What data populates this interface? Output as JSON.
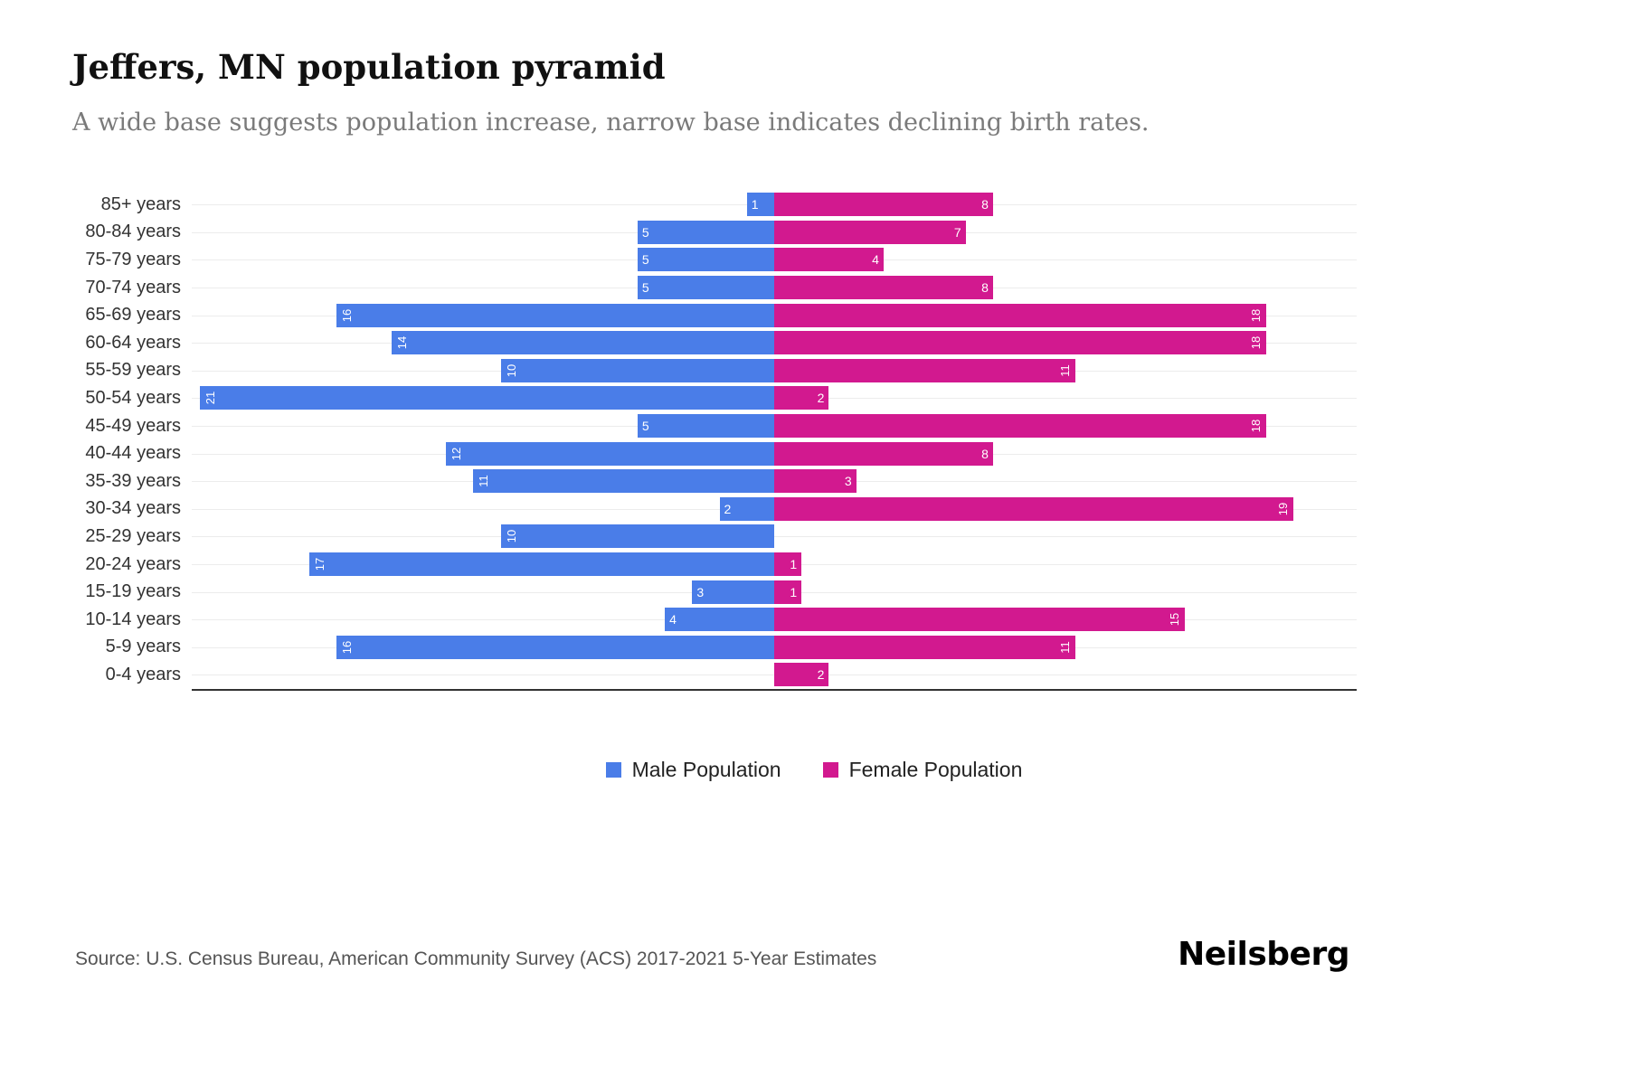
{
  "title": "Jeffers, MN population pyramid",
  "subtitle": "A wide base suggests population increase, narrow base indicates declining birth rates.",
  "legend": {
    "male_label": "Male Population",
    "female_label": "Female Population"
  },
  "source": "Source: U.S. Census Bureau, American Community Survey (ACS) 2017-2021 5-Year Estimates",
  "logo": "Neilsberg",
  "colors": {
    "male": "#4a7de8",
    "female": "#d2198f",
    "axis": "#333333",
    "gridline": "#ececec",
    "subtitle": "#7a7a7a"
  },
  "chart_data": {
    "type": "bar",
    "subtype": "population-pyramid",
    "orientation": "horizontal",
    "title": "Jeffers, MN population pyramid",
    "categories": [
      "85+ years",
      "80-84 years",
      "75-79 years",
      "70-74 years",
      "65-69 years",
      "60-64 years",
      "55-59 years",
      "50-54 years",
      "45-49 years",
      "40-44 years",
      "35-39 years",
      "30-34 years",
      "25-29 years",
      "20-24 years",
      "15-19 years",
      "10-14 years",
      "5-9 years",
      "0-4 years"
    ],
    "series": [
      {
        "name": "Male Population",
        "side": "left",
        "color": "#4a7de8",
        "values": [
          1,
          5,
          5,
          5,
          16,
          14,
          10,
          21,
          5,
          12,
          11,
          2,
          10,
          17,
          3,
          4,
          16,
          0
        ]
      },
      {
        "name": "Female Population",
        "side": "right",
        "color": "#d2198f",
        "values": [
          8,
          7,
          4,
          8,
          18,
          18,
          11,
          2,
          18,
          8,
          3,
          19,
          0,
          1,
          1,
          15,
          11,
          2
        ]
      }
    ],
    "xmax_per_side": 21.3,
    "grid": true,
    "legend_position": "bottom",
    "value_labels": "inside-end, white, rotated when >= 10"
  }
}
